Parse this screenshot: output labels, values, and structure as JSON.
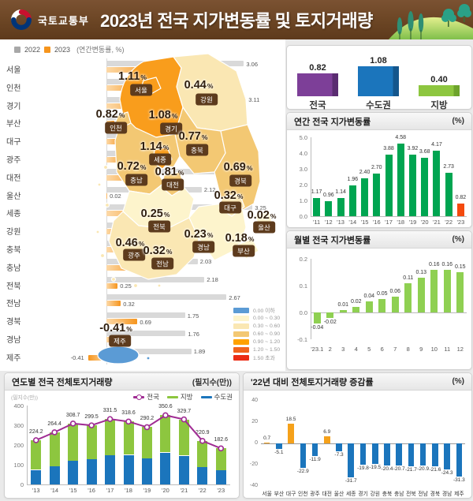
{
  "header": {
    "agency": "국토교통부",
    "title": "2023년 전국 지가변동률 및 토지거래량"
  },
  "region_chart": {
    "legend_2022": "2022",
    "legend_2023": "2023",
    "note": "(연간변동률, %)",
    "color_2022": "#d9d9d9",
    "color_2023": "#f6951d"
  },
  "map": {
    "region_colors": {
      "gyeonggi": "#F99D1C",
      "seoul": "#F99D1C",
      "incheon": "#F3C873",
      "gangwon": "#FAE7B3",
      "sejong": "#F99D1C",
      "chungbuk": "#F3C873",
      "chungnam": "#F3C873",
      "daejeon": "#F3C873",
      "gyeongbuk": "#F3C873",
      "daegu": "#FAE7B3",
      "ulsan": "#FDF4CC",
      "busan": "#FDF4CC",
      "gyeongnam": "#FDF4CC",
      "jeonbuk": "#FDF4CC",
      "gwangju": "#FAE7B3",
      "jeonnam": "#FAE7B3",
      "jeju": "#5B9BD5",
      "islands": "#FAE7B3"
    },
    "labels": [
      {
        "region": "seoul",
        "name": "서울",
        "value": "1.11",
        "unit": "%"
      },
      {
        "region": "gangwon",
        "name": "강원",
        "value": "0.44",
        "unit": "%"
      },
      {
        "region": "incheon",
        "name": "인천",
        "value": "0.82",
        "unit": "%"
      },
      {
        "region": "gyeonggi",
        "name": "경기",
        "value": "1.08",
        "unit": "%"
      },
      {
        "region": "sejong",
        "name": "세종",
        "value": "1.14",
        "unit": "%"
      },
      {
        "region": "chungbuk",
        "name": "충북",
        "value": "0.77",
        "unit": "%"
      },
      {
        "region": "chungnam",
        "name": "충남",
        "value": "0.72",
        "unit": "%"
      },
      {
        "region": "daejeon",
        "name": "대전",
        "value": "0.81",
        "unit": "%"
      },
      {
        "region": "gyeongbuk",
        "name": "경북",
        "value": "0.69",
        "unit": "%"
      },
      {
        "region": "daegu",
        "name": "대구",
        "value": "0.32",
        "unit": "%"
      },
      {
        "region": "ulsan",
        "name": "울산",
        "value": "0.02",
        "unit": "%"
      },
      {
        "region": "jeonbuk",
        "name": "전북",
        "value": "0.25",
        "unit": "%"
      },
      {
        "region": "gwangju",
        "name": "광주",
        "value": "0.46",
        "unit": "%"
      },
      {
        "region": "jeonnam",
        "name": "전남",
        "value": "0.32",
        "unit": "%"
      },
      {
        "region": "gyeongnam",
        "name": "경남",
        "value": "0.23",
        "unit": "%"
      },
      {
        "region": "busan",
        "name": "부산",
        "value": "0.18",
        "unit": "%"
      },
      {
        "region": "jeju",
        "name": "제주",
        "value": "-0.41",
        "unit": "%"
      }
    ],
    "legend": [
      {
        "color": "#5B9BD5",
        "label": "0.00 이하"
      },
      {
        "color": "#FDF4CC",
        "label": "0.00 ~ 0.30"
      },
      {
        "color": "#FAE7B3",
        "label": "0.30 ~ 0.60"
      },
      {
        "color": "#F3C873",
        "label": "0.60 ~ 0.90"
      },
      {
        "color": "#FFA200",
        "label": "0.90 ~ 1.20"
      },
      {
        "color": "#F0641E",
        "label": "1.20 ~ 1.50"
      },
      {
        "color": "#EB2D16",
        "label": "1.50 초과"
      }
    ]
  },
  "chart_data": [
    {
      "id": "region_bars",
      "type": "bar",
      "orientation": "horizontal",
      "categories": [
        "서울",
        "인천",
        "경기",
        "부산",
        "대구",
        "광주",
        "대전",
        "울산",
        "세종",
        "강원",
        "충북",
        "충남",
        "전북",
        "전남",
        "경북",
        "경남",
        "제주"
      ],
      "series": [
        {
          "name": "2022",
          "values": [
            3.06,
            2.37,
            3.11,
            2.75,
            2.55,
            2.27,
            2.57,
            2.12,
            3.25,
            2.28,
            2.23,
            2.03,
            2.18,
            2.67,
            1.75,
            1.76,
            1.89
          ]
        },
        {
          "name": "2023",
          "values": [
            1.11,
            0.82,
            1.08,
            0.18,
            0.32,
            0.46,
            0.81,
            0.02,
            1.14,
            0.44,
            0.77,
            0.72,
            0.25,
            0.32,
            0.69,
            0.23,
            -0.41
          ]
        }
      ]
    },
    {
      "id": "summary",
      "type": "bar",
      "categories": [
        "전국",
        "수도권",
        "지방"
      ],
      "values": [
        0.82,
        1.08,
        0.4
      ],
      "colors": [
        "#7D3F98",
        "#1B75BC",
        "#8DC63F"
      ],
      "dark_colors": [
        "#5A2C71",
        "#14568C",
        "#6DA32C"
      ]
    },
    {
      "id": "annual",
      "type": "bar",
      "title": "연간 전국 지가변동률",
      "unit": "(%)",
      "categories": [
        "'11",
        "'12",
        "'13",
        "'14",
        "'15",
        "'16",
        "'17",
        "'18",
        "'19",
        "'20",
        "'21",
        "'22",
        "'23"
      ],
      "values": [
        1.17,
        0.96,
        1.14,
        1.96,
        2.4,
        2.7,
        3.88,
        4.58,
        3.92,
        3.68,
        4.17,
        2.73,
        0.82
      ],
      "bar_color": "#00A551",
      "highlight_last_color": "#F44A0E",
      "yticks": [
        "5.0",
        "4.0",
        "3.0",
        "2.0",
        "1.0",
        "0.0"
      ],
      "ylim": [
        0,
        5
      ]
    },
    {
      "id": "monthly",
      "type": "bar",
      "title": "월별 전국 지가변동률",
      "unit": "(%)",
      "categories": [
        "'23.1",
        "2",
        "3",
        "4",
        "5",
        "6",
        "7",
        "8",
        "9",
        "10",
        "11",
        "12"
      ],
      "values": [
        -0.04,
        -0.02,
        0.01,
        0.02,
        0.04,
        0.05,
        0.06,
        0.11,
        0.13,
        0.16,
        0.16,
        0.15
      ],
      "bar_color": "#8FD052",
      "yticks": [
        "0.2",
        "0.1",
        "0.0",
        "-0.1"
      ],
      "ylim": [
        -0.1,
        0.2
      ]
    },
    {
      "id": "volume",
      "type": "bar+line",
      "title": "연도별 전국 전체토지거래량",
      "unit": "(필지수(만))",
      "axis_note": "(필지수(만))",
      "categories": [
        "'13",
        "'14",
        "'15",
        "'16",
        "'17",
        "'18",
        "'19",
        "'20",
        "'21",
        "'22",
        "'23"
      ],
      "totals": [
        224.2,
        264.4,
        308.7,
        299.5,
        331.5,
        318.6,
        290.2,
        350.6,
        329.7,
        220.9,
        182.6
      ],
      "capital": [
        74,
        93,
        120,
        127,
        148,
        150,
        133,
        162,
        146,
        88,
        73
      ],
      "local": [
        150.2,
        171.4,
        188.7,
        172.5,
        183.5,
        168.6,
        157.2,
        188.6,
        183.7,
        132.9,
        109.6
      ],
      "legend": [
        {
          "name": "전국",
          "color": "#A02C93",
          "marker": true
        },
        {
          "name": "지방",
          "color": "#8DC63F",
          "marker": false
        },
        {
          "name": "수도권",
          "color": "#1B75BC",
          "marker": false
        }
      ],
      "yticks": [
        "400",
        "300",
        "200",
        "100",
        "0"
      ],
      "ylim": [
        0,
        400
      ]
    },
    {
      "id": "change",
      "type": "bar",
      "title": "'22년 대비 전체토지거래량 증감률",
      "unit": "(%)",
      "categories": [
        "서울",
        "부산",
        "대구",
        "인천",
        "광주",
        "대전",
        "울산",
        "세종",
        "경기",
        "강원",
        "충북",
        "충남",
        "전북",
        "전남",
        "경북",
        "경남",
        "제주"
      ],
      "values": [
        0.7,
        -5.1,
        18.5,
        -22.9,
        -11.9,
        6.9,
        -7.3,
        -31.7,
        -19.8,
        -19.5,
        -20.4,
        -20.7,
        -21.7,
        -20.9,
        -21.6,
        -24.3,
        -31.3
      ],
      "pos_color": "#F5A11A",
      "neg_color": "#1B75BC",
      "yticks": [
        "40",
        "20",
        "0",
        "-20",
        "-40"
      ],
      "ylim": [
        -40,
        40
      ]
    }
  ]
}
